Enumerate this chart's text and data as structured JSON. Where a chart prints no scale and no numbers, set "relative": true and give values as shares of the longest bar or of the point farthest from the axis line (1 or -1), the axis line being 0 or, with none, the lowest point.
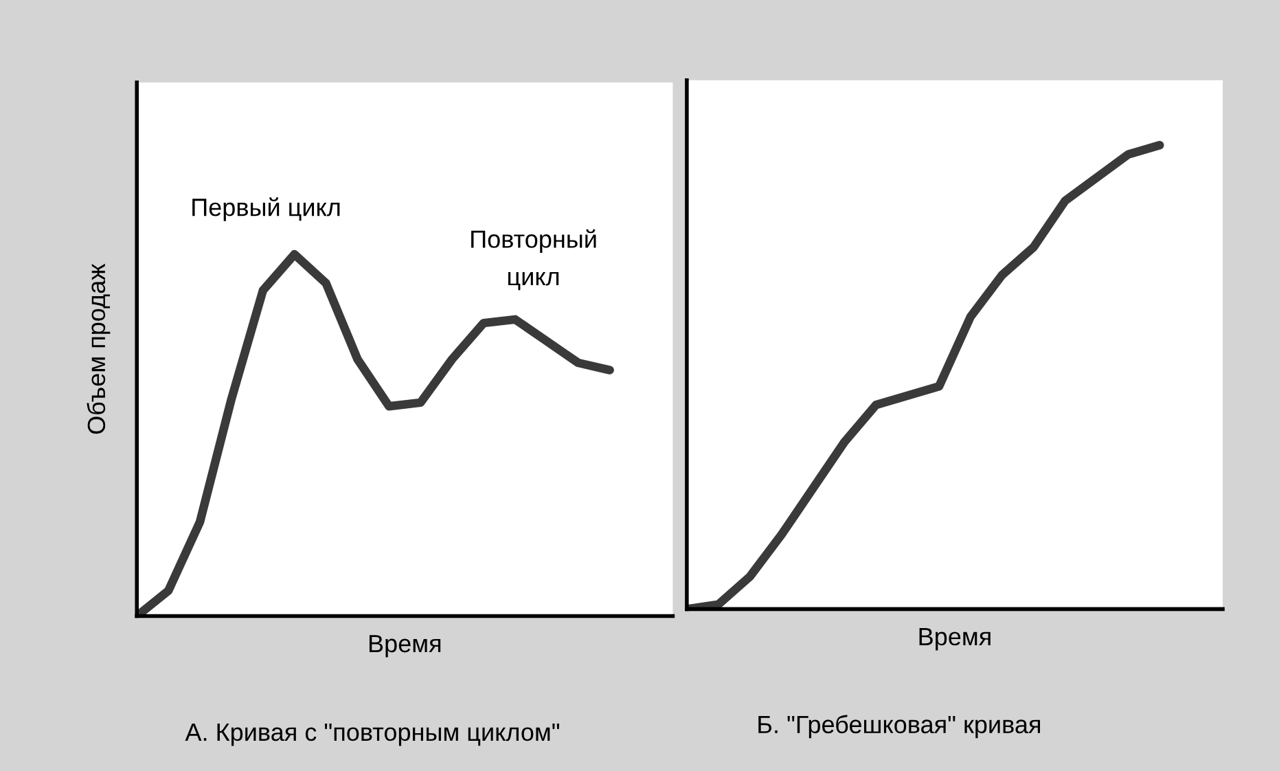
{
  "chart_data": [
    {
      "type": "line",
      "title": "А. Кривая с \"повторным циклом\"",
      "xlabel": "Время",
      "ylabel": "Объем продаж",
      "relative": true,
      "color": "#3a3a3a",
      "categories": [
        null,
        null,
        null,
        null,
        null,
        null,
        null,
        null,
        null,
        null,
        null,
        null,
        null,
        null,
        null,
        null,
        null,
        null
      ],
      "values": [
        0,
        0.07,
        0.26,
        0.6,
        0.9,
        1,
        0.92,
        0.71,
        0.58,
        0.59,
        0.71,
        0.81,
        0.82,
        0.76,
        0.7,
        0.68,
        null,
        null
      ],
      "annotations": [
        "Первый цикл",
        "Повторный\nцикл"
      ],
      "grid": false,
      "legend": false
    },
    {
      "type": "line",
      "title": "Б. \"Гребешковая\" кривая",
      "xlabel": "Время",
      "relative": true,
      "color": "#3a3a3a",
      "categories": [
        null,
        null,
        null,
        null,
        null,
        null,
        null,
        null,
        null,
        null,
        null,
        null,
        null,
        null,
        null,
        null,
        null,
        null
      ],
      "values": [
        0,
        0.01,
        0.07,
        0.16,
        0.26,
        0.36,
        0.44,
        0.46,
        0.48,
        0.63,
        0.72,
        0.78,
        0.88,
        0.93,
        0.98,
        1,
        null,
        null
      ],
      "grid": false,
      "legend": false
    }
  ]
}
